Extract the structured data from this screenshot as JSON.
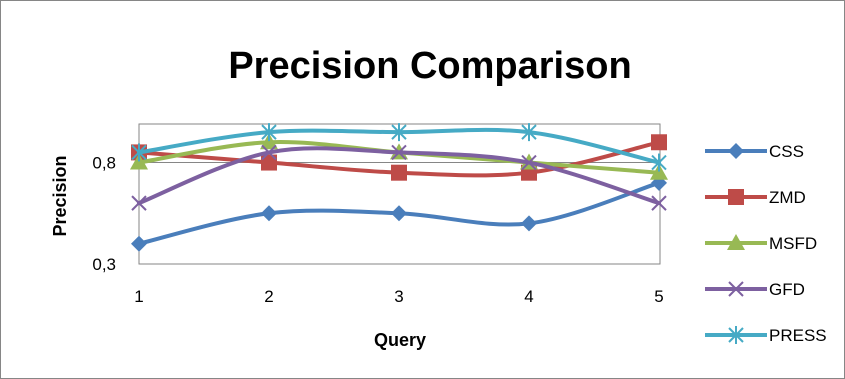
{
  "chart_data": {
    "type": "line",
    "title": "Precision Comparison",
    "xlabel": "Query",
    "ylabel": "Precision",
    "categories": [
      "1",
      "2",
      "3",
      "4",
      "5"
    ],
    "y_ticks": [
      "0,3",
      "0,8"
    ],
    "ylim": [
      0.3,
      0.99
    ],
    "grid": "horizontal gridline at 0,8",
    "legend_position": "right",
    "series": [
      {
        "name": "CSS",
        "color": "#4A7EBB",
        "marker": "diamond",
        "values": [
          0.4,
          0.55,
          0.55,
          0.5,
          0.7
        ]
      },
      {
        "name": "ZMD",
        "color": "#BE4B48",
        "marker": "square",
        "values": [
          0.85,
          0.8,
          0.75,
          0.75,
          0.9
        ]
      },
      {
        "name": "MSFD",
        "color": "#98B954",
        "marker": "triangle",
        "values": [
          0.8,
          0.9,
          0.85,
          0.8,
          0.75
        ]
      },
      {
        "name": "GFD",
        "color": "#7D60A0",
        "marker": "x",
        "values": [
          0.6,
          0.85,
          0.85,
          0.8,
          0.6
        ]
      },
      {
        "name": "PRESS",
        "color": "#46AAC5",
        "marker": "star",
        "values": [
          0.85,
          0.95,
          0.95,
          0.95,
          0.8
        ]
      }
    ]
  }
}
